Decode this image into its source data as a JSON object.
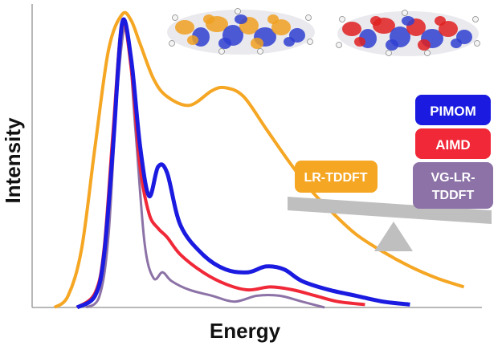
{
  "chart_data": {
    "type": "line",
    "xlabel": "Energy",
    "ylabel": "Intensity",
    "grid": false,
    "xlim": [
      0,
      100
    ],
    "ylim": [
      0,
      1.0
    ],
    "series": [
      {
        "name": "LR-TDDFT",
        "color": "#f5a623",
        "x": [
          5,
          8,
          11,
          14,
          17,
          20,
          22,
          24,
          27,
          30,
          35,
          40,
          43,
          47,
          52,
          57,
          62,
          67,
          72,
          78,
          84,
          90,
          96
        ],
        "values": [
          0.0,
          0.04,
          0.2,
          0.55,
          0.88,
          1.0,
          0.98,
          0.9,
          0.78,
          0.72,
          0.69,
          0.74,
          0.75,
          0.72,
          0.61,
          0.5,
          0.4,
          0.32,
          0.25,
          0.19,
          0.14,
          0.1,
          0.07
        ]
      },
      {
        "name": "PIMOM",
        "color": "#1a1ae0",
        "x": [
          10,
          14,
          16,
          18,
          20,
          22,
          24,
          26,
          28,
          30,
          33,
          38,
          43,
          48,
          52,
          56,
          60,
          66,
          72,
          78,
          84
        ],
        "values": [
          0.0,
          0.04,
          0.18,
          0.55,
          0.97,
          0.85,
          0.55,
          0.38,
          0.48,
          0.46,
          0.28,
          0.18,
          0.13,
          0.12,
          0.14,
          0.13,
          0.09,
          0.06,
          0.04,
          0.02,
          0.01
        ]
      },
      {
        "name": "AIMD",
        "color": "#f02838",
        "x": [
          10,
          14,
          16,
          18,
          20,
          22,
          24,
          26,
          28,
          30,
          33,
          38,
          43,
          48,
          53,
          58,
          63,
          68,
          74
        ],
        "values": [
          0.0,
          0.05,
          0.2,
          0.6,
          0.97,
          0.82,
          0.48,
          0.32,
          0.27,
          0.24,
          0.18,
          0.12,
          0.08,
          0.06,
          0.07,
          0.06,
          0.04,
          0.02,
          0.01
        ]
      },
      {
        "name": "VG-LR-TDDFT",
        "color": "#8c72a6",
        "x": [
          12,
          15,
          17,
          19,
          21,
          23,
          25,
          27,
          29,
          31,
          35,
          40,
          45,
          50,
          55,
          60,
          65
        ],
        "values": [
          0.0,
          0.04,
          0.25,
          0.75,
          0.96,
          0.6,
          0.22,
          0.1,
          0.12,
          0.09,
          0.06,
          0.04,
          0.02,
          0.04,
          0.04,
          0.02,
          0.0
        ]
      }
    ]
  },
  "labels": {
    "lr_tddft": "LR-TDDFT",
    "pimom": "PIMOM",
    "aimd": "AIMD",
    "vg_line1": "VG-LR-",
    "vg_line2": "TDDFT"
  },
  "colors": {
    "lr_tddft_box": "#f5a623",
    "pimom_box": "#1a1ae0",
    "aimd_box": "#f02838",
    "vg_box": "#8c72a6",
    "balance": "#bfbfbf",
    "axes": "#a0a0a0"
  },
  "molecules": [
    {
      "name": "molecule-orbital-left",
      "lobe_a": "#f0a020",
      "lobe_b": "#3040d0"
    },
    {
      "name": "molecule-orbital-right",
      "lobe_a": "#e02020",
      "lobe_b": "#3040d0"
    }
  ]
}
